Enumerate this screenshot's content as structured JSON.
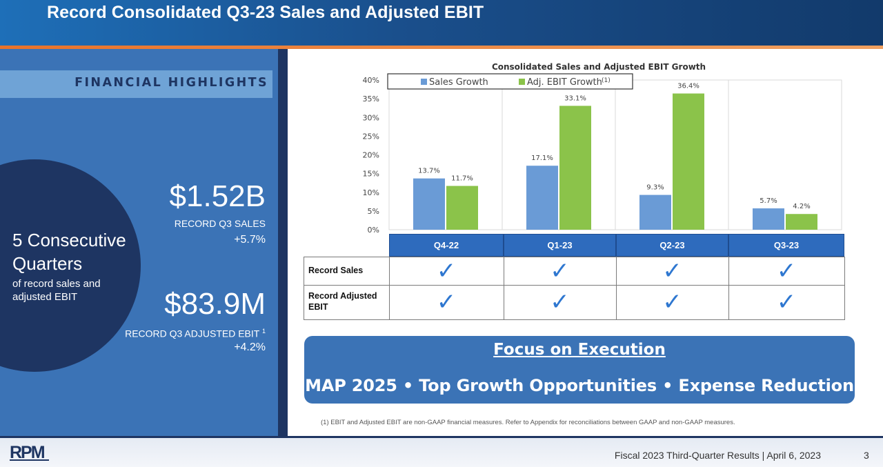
{
  "slide": {
    "title": "Record Consolidated Q3-23 Sales and Adjusted EBIT"
  },
  "left": {
    "highlights_label": "FINANCIAL HIGHLIGHTS",
    "circle_big_line1": "5 Consecutive",
    "circle_big_line2": "Quarters",
    "circle_small": "of record sales and adjusted EBIT",
    "stat1": {
      "value": "$1.52B",
      "label": "RECORD Q3 SALES",
      "change": "+5.7%"
    },
    "stat2": {
      "value": "$83.9M",
      "label": "RECORD Q3 ADJUSTED EBIT",
      "superscript": "1",
      "change": "+4.2%"
    }
  },
  "chart_data": {
    "type": "bar",
    "title": "Consolidated Sales and Adjusted EBIT Growth",
    "categories": [
      "Q4-22",
      "Q1-23",
      "Q2-23",
      "Q3-23"
    ],
    "series": [
      {
        "name": "Sales Growth",
        "values": [
          13.7,
          17.1,
          9.3,
          5.7
        ],
        "color": "#6a9bd6"
      },
      {
        "name": "Adj. EBIT Growth",
        "name_superscript": "(1)",
        "values": [
          11.7,
          33.1,
          36.4,
          4.2
        ],
        "color": "#8bc34a"
      }
    ],
    "value_labels": [
      [
        "13.7%",
        "17.1%",
        "9.3%",
        "5.7%"
      ],
      [
        "11.7%",
        "33.1%",
        "36.4%",
        "4.2%"
      ]
    ],
    "y_ticks": [
      "0%",
      "5%",
      "10%",
      "15%",
      "20%",
      "25%",
      "30%",
      "35%",
      "40%"
    ],
    "ylim": [
      0,
      40
    ],
    "legend_position": "top-left",
    "grid": false
  },
  "table": {
    "rows": [
      {
        "label": "Record Sales",
        "checks": [
          true,
          true,
          true,
          true
        ]
      },
      {
        "label": "Record Adjusted EBIT",
        "checks": [
          true,
          true,
          true,
          true
        ]
      }
    ],
    "check_glyph": "✓"
  },
  "focus": {
    "title": "Focus on Execution",
    "subtitle": "MAP 2025 • Top Growth Opportunities • Expense Reduction"
  },
  "footnote": "(1) EBIT and Adjusted EBIT are non-GAAP financial measures. Refer to Appendix for reconciliations between GAAP and non-GAAP measures.",
  "footer": {
    "logo_text": "RPM",
    "text": "Fiscal 2023 Third-Quarter Results | April 6, 2023",
    "page": "3"
  },
  "colors": {
    "navy": "#1e3562",
    "mid_blue": "#3b73b6",
    "accent_orange": "#e8732b"
  }
}
